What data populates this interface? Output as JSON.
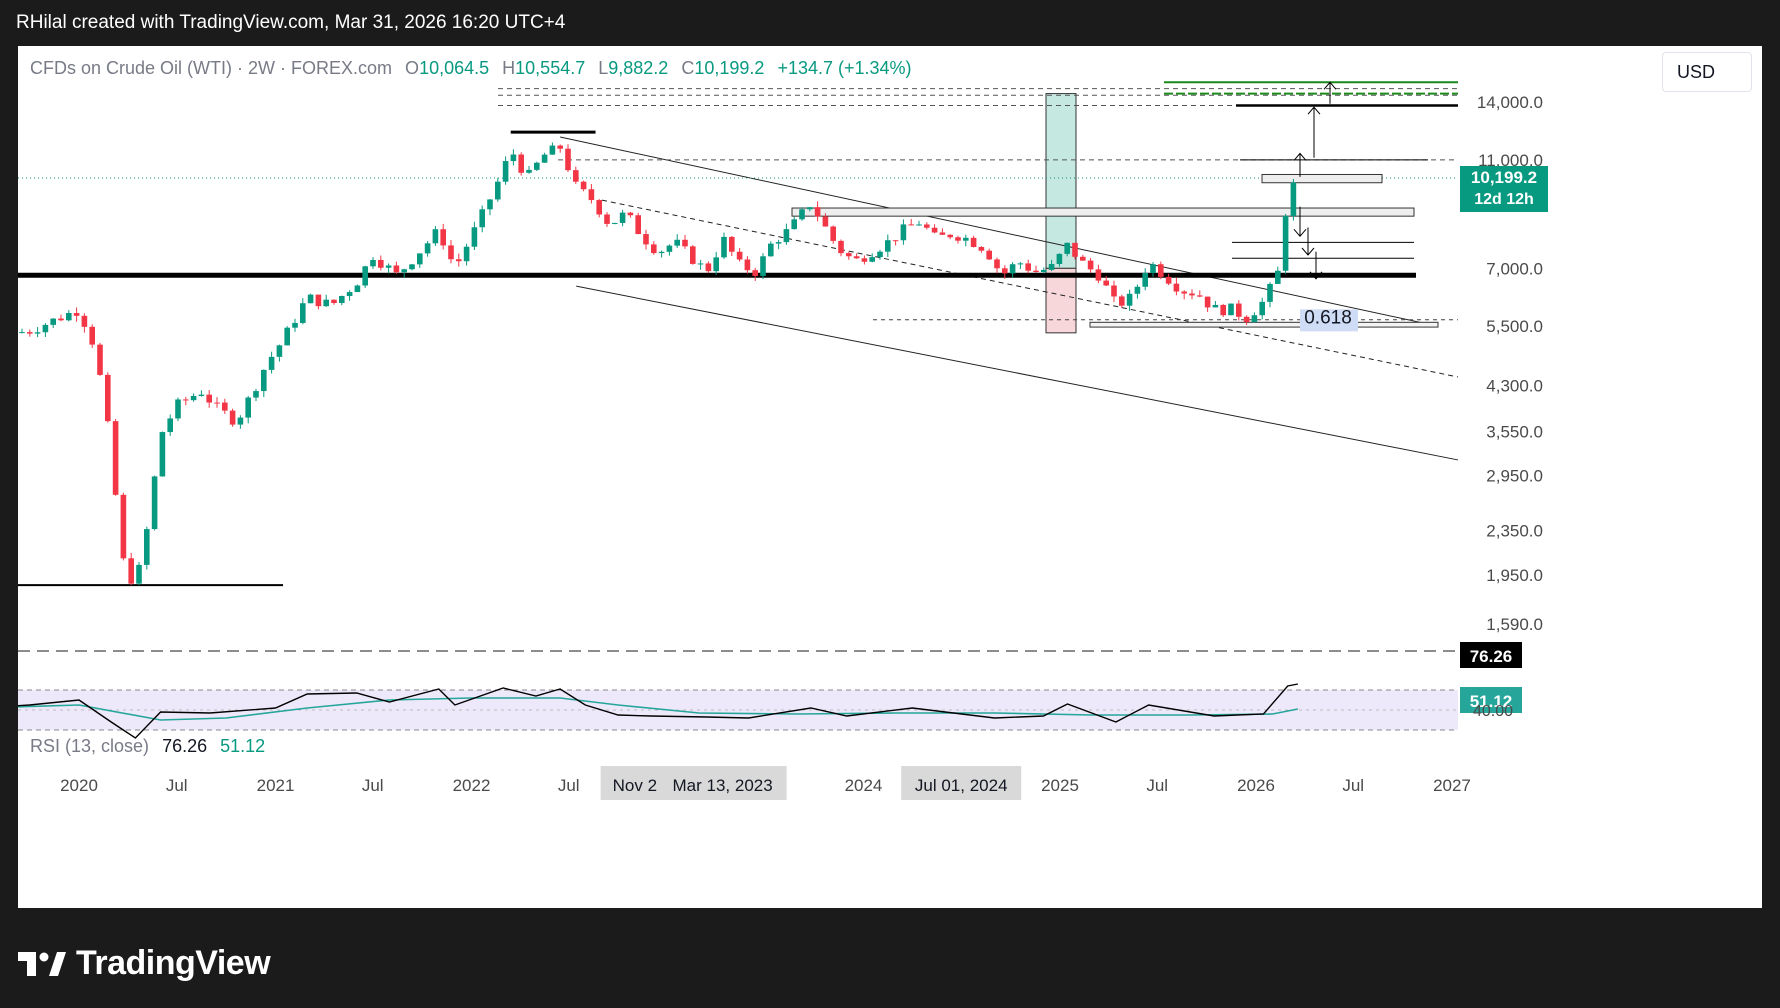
{
  "header": {
    "caption": "RHilal created with TradingView.com, Mar 31, 2026 16:20 UTC+4"
  },
  "legend": {
    "symbol": "CFDs on Crude Oil (WTI) · 2W · FOREX.com",
    "open_label": "O",
    "open": "10,064.5",
    "high_label": "H",
    "high": "10,554.7",
    "low_label": "L",
    "low": "9,882.2",
    "close_label": "C",
    "close": "10,199.2",
    "change": "+134.7 (+1.34%)"
  },
  "currency": "USD",
  "footer": {
    "brand": "TradingView"
  },
  "colors": {
    "up": "#089981",
    "down": "#f23645",
    "rsi_line": "#000000",
    "rsi_ma": "#26a69a",
    "rsi_band": "#ede9fb",
    "green_target": "#1b8a1b",
    "long_box": "#c5e8e1",
    "short_box": "#f8d7da"
  },
  "chart_data": {
    "type": "candlestick",
    "instrument": "CFDs on Crude Oil (WTI)",
    "timeframe": "2W",
    "price_scale": "log",
    "y_ticks": [
      1590,
      1950,
      2350,
      2950,
      3550,
      4300,
      5500,
      7000,
      11000,
      14000
    ],
    "y_tick_labels": [
      "1,590.0",
      "1,950.0",
      "2,350.0",
      "2,950.0",
      "3,550.0",
      "4,300.0",
      "5,500.0",
      "7,000.0",
      "11,000.0",
      "14,000.0"
    ],
    "x_labels": [
      {
        "date": "2020-01-01",
        "label": "2020"
      },
      {
        "date": "2020-07-01",
        "label": "Jul"
      },
      {
        "date": "2021-01-01",
        "label": "2021"
      },
      {
        "date": "2021-07-01",
        "label": "Jul"
      },
      {
        "date": "2022-01-01",
        "label": "2022"
      },
      {
        "date": "2022-07-01",
        "label": "Jul"
      },
      {
        "date": "2023-07-01",
        "label": "Jul"
      },
      {
        "date": "2024-01-01",
        "label": "2024"
      },
      {
        "date": "2025-01-01",
        "label": "2025"
      },
      {
        "date": "2025-07-01",
        "label": "Jul"
      },
      {
        "date": "2026-01-01",
        "label": "2026"
      },
      {
        "date": "2026-07-01",
        "label": "Jul"
      },
      {
        "date": "2027-01-01",
        "label": "2027"
      }
    ],
    "x_highlights": [
      {
        "date": "2023-03-13",
        "label": "Mar 13, 2023",
        "secondary": "Nov 2"
      },
      {
        "date": "2024-07-01",
        "label": "Jul 01, 2024"
      }
    ],
    "current_price": {
      "value": 10199.2,
      "label": "10,199.2",
      "countdown": "12d 12h"
    },
    "close_path": [
      [
        "2019-07-01",
        5200
      ],
      [
        "2019-10-01",
        5400
      ],
      [
        "2020-01-01",
        5900
      ],
      [
        "2020-02-01",
        5000
      ],
      [
        "2020-03-01",
        3300
      ],
      [
        "2020-03-20",
        2100
      ],
      [
        "2020-04-15",
        1850
      ],
      [
        "2020-05-10",
        2450
      ],
      [
        "2020-06-01",
        3500
      ],
      [
        "2020-07-01",
        3950
      ],
      [
        "2020-08-15",
        4200
      ],
      [
        "2020-09-15",
        3900
      ],
      [
        "2020-10-20",
        3700
      ],
      [
        "2020-11-15",
        4100
      ],
      [
        "2020-12-15",
        4700
      ],
      [
        "2021-01-15",
        5200
      ],
      [
        "2021-03-01",
        6200
      ],
      [
        "2021-04-15",
        6000
      ],
      [
        "2021-06-01",
        6600
      ],
      [
        "2021-07-01",
        7400
      ],
      [
        "2021-08-15",
        6800
      ],
      [
        "2021-10-01",
        7600
      ],
      [
        "2021-11-01",
        8200
      ],
      [
        "2021-12-01",
        7000
      ],
      [
        "2022-01-15",
        8500
      ],
      [
        "2022-03-01",
        10500
      ],
      [
        "2022-03-15",
        11500
      ],
      [
        "2022-04-15",
        10200
      ],
      [
        "2022-05-15",
        11200
      ],
      [
        "2022-06-15",
        11600
      ],
      [
        "2022-07-15",
        9800
      ],
      [
        "2022-08-15",
        9300
      ],
      [
        "2022-09-15",
        8400
      ],
      [
        "2022-10-15",
        8800
      ],
      [
        "2022-11-15",
        8000
      ],
      [
        "2022-12-15",
        7500
      ],
      [
        "2023-01-15",
        7800
      ],
      [
        "2023-03-15",
        6900
      ],
      [
        "2023-04-15",
        7900
      ],
      [
        "2023-05-15",
        7100
      ],
      [
        "2023-06-15",
        6900
      ],
      [
        "2023-07-15",
        7800
      ],
      [
        "2023-08-15",
        8200
      ],
      [
        "2023-09-25",
        9200
      ],
      [
        "2023-10-15",
        8500
      ],
      [
        "2023-11-15",
        7600
      ],
      [
        "2023-12-15",
        7200
      ],
      [
        "2024-01-15",
        7500
      ],
      [
        "2024-02-15",
        7800
      ],
      [
        "2024-03-15",
        8200
      ],
      [
        "2024-04-15",
        8500
      ],
      [
        "2024-05-15",
        7900
      ],
      [
        "2024-06-15",
        8100
      ],
      [
        "2024-07-15",
        7900
      ],
      [
        "2024-08-15",
        7600
      ],
      [
        "2024-09-15",
        6800
      ],
      [
        "2024-10-15",
        7200
      ],
      [
        "2024-11-15",
        6900
      ],
      [
        "2024-12-15",
        7000
      ],
      [
        "2025-01-15",
        7700
      ],
      [
        "2025-02-15",
        7100
      ],
      [
        "2025-03-15",
        6800
      ],
      [
        "2025-04-15",
        6000
      ],
      [
        "2025-05-15",
        6200
      ],
      [
        "2025-06-15",
        7200
      ],
      [
        "2025-07-15",
        6800
      ],
      [
        "2025-08-15",
        6400
      ],
      [
        "2025-09-15",
        6300
      ],
      [
        "2025-10-15",
        5900
      ],
      [
        "2025-11-15",
        5900
      ],
      [
        "2025-12-15",
        5700
      ],
      [
        "2026-01-15",
        6100
      ],
      [
        "2026-02-10",
        6800
      ],
      [
        "2026-03-01",
        9500
      ],
      [
        "2026-03-20",
        10199
      ]
    ],
    "horizontal_levels": [
      {
        "name": "2022 high",
        "price": 12100
      },
      {
        "name": "key support",
        "price": 6800
      },
      {
        "name": "2020 low",
        "price": 1870
      },
      {
        "name": "0.618 level",
        "price": 5550
      }
    ],
    "fib_label": "0.618",
    "rsi": {
      "name": "RSI (13, close)",
      "value": 76.26,
      "value_label": "76.26",
      "ma": 51.12,
      "ma_label": "51.12",
      "level_label": "40.00",
      "upper": 70,
      "lower": 30,
      "points": [
        [
          "2019-07-01",
          52
        ],
        [
          "2019-10-01",
          55
        ],
        [
          "2020-01-01",
          60
        ],
        [
          "2020-03-01",
          38
        ],
        [
          "2020-04-15",
          22
        ],
        [
          "2020-06-01",
          48
        ],
        [
          "2020-09-01",
          47
        ],
        [
          "2021-01-01",
          52
        ],
        [
          "2021-03-01",
          66
        ],
        [
          "2021-06-01",
          67
        ],
        [
          "2021-08-01",
          58
        ],
        [
          "2021-11-01",
          71
        ],
        [
          "2021-12-01",
          55
        ],
        [
          "2022-03-01",
          72
        ],
        [
          "2022-05-01",
          64
        ],
        [
          "2022-06-15",
          71
        ],
        [
          "2022-08-01",
          55
        ],
        [
          "2022-10-01",
          45
        ],
        [
          "2022-12-01",
          44
        ],
        [
          "2023-03-15",
          43
        ],
        [
          "2023-06-01",
          42
        ],
        [
          "2023-09-25",
          52
        ],
        [
          "2023-12-01",
          44
        ],
        [
          "2024-04-01",
          52
        ],
        [
          "2024-09-01",
          42
        ],
        [
          "2024-12-01",
          44
        ],
        [
          "2025-01-15",
          56
        ],
        [
          "2025-04-15",
          38
        ],
        [
          "2025-06-15",
          55
        ],
        [
          "2025-10-15",
          44
        ],
        [
          "2026-01-15",
          46
        ],
        [
          "2026-03-01",
          74
        ],
        [
          "2026-03-20",
          76
        ]
      ],
      "ma_points": [
        [
          "2019-07-01",
          52
        ],
        [
          "2020-01-01",
          55
        ],
        [
          "2020-06-01",
          40
        ],
        [
          "2020-10-01",
          42
        ],
        [
          "2021-03-01",
          52
        ],
        [
          "2021-08-01",
          60
        ],
        [
          "2022-01-01",
          62
        ],
        [
          "2022-06-15",
          62
        ],
        [
          "2022-10-01",
          55
        ],
        [
          "2023-03-01",
          47
        ],
        [
          "2023-09-01",
          46
        ],
        [
          "2024-03-01",
          47
        ],
        [
          "2024-09-01",
          47
        ],
        [
          "2025-03-01",
          45
        ],
        [
          "2025-09-01",
          45
        ],
        [
          "2026-02-01",
          46
        ],
        [
          "2026-03-20",
          51
        ]
      ]
    }
  }
}
